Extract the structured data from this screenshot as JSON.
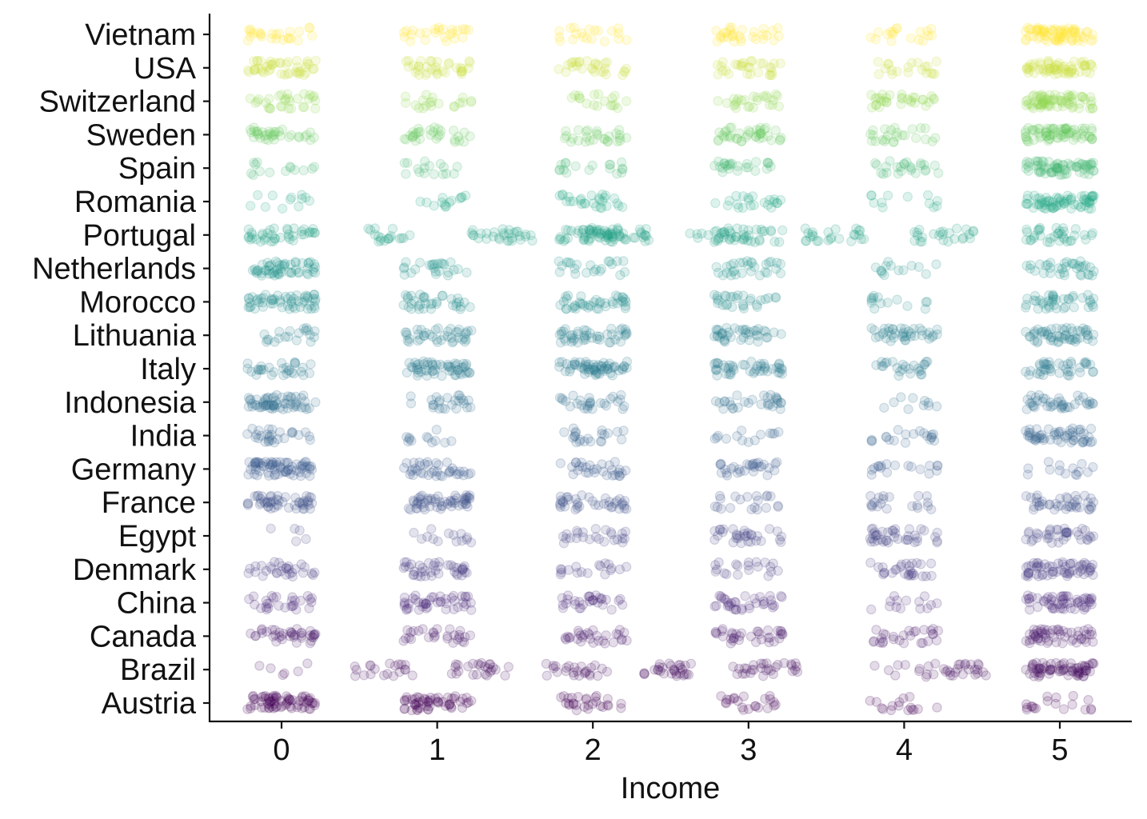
{
  "chart_data": {
    "type": "scatter",
    "title": "",
    "xlabel": "Income",
    "ylabel": "",
    "xlim": [
      -0.46,
      5.46
    ],
    "x_ticks": [
      0,
      1,
      2,
      3,
      4,
      5
    ],
    "x_tick_labels": [
      "0",
      "1",
      "2",
      "3",
      "4",
      "5"
    ],
    "categories": [
      "Austria",
      "Brazil",
      "Canada",
      "China",
      "Denmark",
      "Egypt",
      "France",
      "Germany",
      "India",
      "Indonesia",
      "Italy",
      "Lithuania",
      "Morocco",
      "Netherlands",
      "Portugal",
      "Romania",
      "Spain",
      "Sweden",
      "Switzerland",
      "USA",
      "Vietnam"
    ],
    "jitter": "horizontal and vertical jitter, semi-transparent points",
    "point_alpha": 0.15,
    "legend": "none",
    "grid": false,
    "color_scale": "viridis, by country (Austria dark purple to Vietnam yellow)",
    "points_per_cluster": {
      "Austria": [
        70,
        55,
        28,
        22,
        16,
        18
      ],
      "Brazil": [
        6,
        0,
        0,
        0,
        10,
        70
      ],
      "Canada": [
        40,
        28,
        30,
        35,
        28,
        55
      ],
      "China": [
        28,
        45,
        30,
        35,
        14,
        55
      ],
      "Denmark": [
        30,
        40,
        18,
        20,
        28,
        60
      ],
      "Egypt": [
        5,
        14,
        25,
        32,
        40,
        38
      ],
      "France": [
        50,
        55,
        38,
        20,
        20,
        40
      ],
      "Germany": [
        70,
        38,
        30,
        30,
        18,
        14
      ],
      "India": [
        28,
        12,
        22,
        14,
        20,
        55
      ],
      "Indonesia": [
        60,
        25,
        28,
        30,
        10,
        40
      ],
      "Italy": [
        30,
        55,
        60,
        45,
        25,
        40
      ],
      "Lithuania": [
        20,
        40,
        45,
        40,
        40,
        55
      ],
      "Morocco": [
        55,
        35,
        40,
        28,
        14,
        40
      ],
      "Netherlands": [
        55,
        25,
        22,
        30,
        14,
        35
      ],
      "Portugal": [
        40,
        0,
        40,
        25,
        0,
        35
      ],
      "Romania": [
        12,
        14,
        28,
        22,
        12,
        70
      ],
      "Spain": [
        14,
        16,
        18,
        25,
        25,
        70
      ],
      "Sweden": [
        35,
        30,
        28,
        40,
        25,
        70
      ],
      "Switzerland": [
        30,
        20,
        18,
        25,
        32,
        70
      ],
      "USA": [
        45,
        35,
        28,
        30,
        20,
        60
      ],
      "Vietnam": [
        25,
        25,
        20,
        30,
        18,
        70
      ]
    },
    "offgrid_clusters": [
      {
        "category": "Brazil",
        "x_range": [
          0.42,
          0.85
        ],
        "n": 20
      },
      {
        "category": "Brazil",
        "x_range": [
          1.08,
          1.46
        ],
        "n": 25
      },
      {
        "category": "Brazil",
        "x_range": [
          1.68,
          2.1
        ],
        "n": 25
      },
      {
        "category": "Brazil",
        "x_range": [
          2.32,
          2.66
        ],
        "n": 30
      },
      {
        "category": "Brazil",
        "x_range": [
          2.88,
          3.32
        ],
        "n": 30
      },
      {
        "category": "Brazil",
        "x_range": [
          4.15,
          4.57
        ],
        "n": 25
      },
      {
        "category": "Portugal",
        "x_range": [
          0.52,
          0.9
        ],
        "n": 18
      },
      {
        "category": "Portugal",
        "x_range": [
          1.22,
          1.62
        ],
        "n": 30
      },
      {
        "category": "Portugal",
        "x_range": [
          1.9,
          2.36
        ],
        "n": 40
      },
      {
        "category": "Portugal",
        "x_range": [
          2.62,
          3.02
        ],
        "n": 25
      },
      {
        "category": "Portugal",
        "x_range": [
          3.36,
          3.76
        ],
        "n": 25
      },
      {
        "category": "Portugal",
        "x_range": [
          4.05,
          4.45
        ],
        "n": 25
      }
    ]
  }
}
